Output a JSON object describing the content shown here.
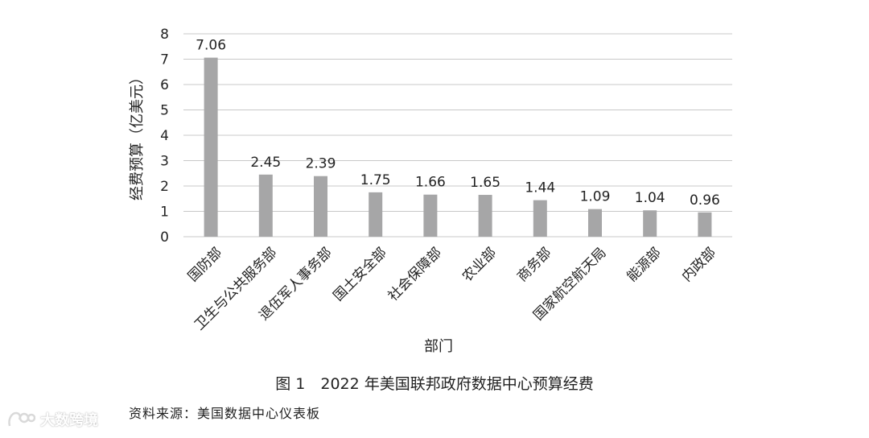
{
  "chart_data": {
    "type": "bar",
    "categories": [
      "国防部",
      "卫生与公共服务部",
      "退伍军人事务部",
      "国土安全部",
      "社会保障部",
      "农业部",
      "商务部",
      "国家航空航天局",
      "能源部",
      "内政部"
    ],
    "values": [
      7.06,
      2.45,
      2.39,
      1.75,
      1.66,
      1.65,
      1.44,
      1.09,
      1.04,
      0.96
    ],
    "data_labels": [
      "7.06",
      "2.45",
      "2.39",
      "1.75",
      "1.66",
      "1.65",
      "1.44",
      "1.09",
      "1.04",
      "0.96"
    ],
    "xlabel": "部门",
    "ylabel": "经费预算（亿美元）",
    "ylim": [
      0,
      8
    ],
    "yticks": [
      "0",
      "1",
      "2",
      "3",
      "4",
      "5",
      "6",
      "7",
      "8"
    ],
    "grid": true,
    "bar_color": "#a6a6a7",
    "grid_color": "#c8c8c8"
  },
  "caption": "图 1　2022 年美国联邦政府数据中心预算经费",
  "source": "资料来源：美国数据中心仪表板",
  "watermark": {
    "text": "大数跨境",
    "icon": "brand-logo-icon"
  }
}
